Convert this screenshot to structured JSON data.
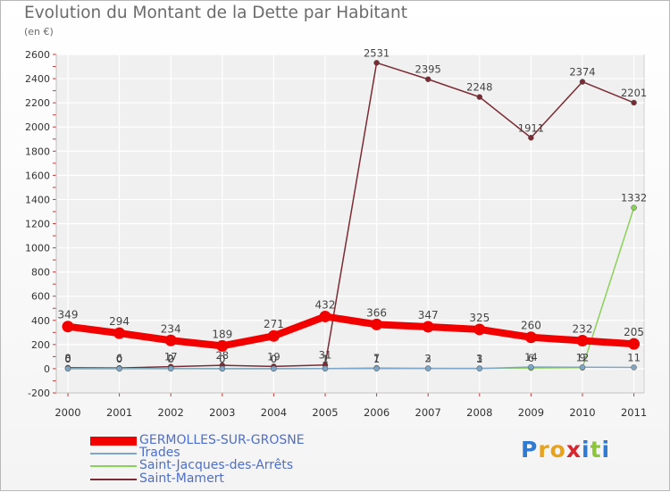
{
  "header": {
    "title": "Evolution du Montant de la Dette par Habitant",
    "unit": "(en €)"
  },
  "chart_data": {
    "type": "line",
    "title": "Evolution du Montant de la Dette par Habitant",
    "ylabel": "(en €)",
    "xlabel": "",
    "x": [
      "2000",
      "2001",
      "2002",
      "2003",
      "2004",
      "2005",
      "2006",
      "2007",
      "2008",
      "2009",
      "2010",
      "2011"
    ],
    "ylim": [
      -200,
      2600
    ],
    "yticks": [
      -200,
      0,
      200,
      400,
      600,
      800,
      1000,
      1200,
      1400,
      1600,
      1800,
      2000,
      2200,
      2400,
      2600
    ],
    "grid": true,
    "legend_position": "bottom-left",
    "series": [
      {
        "name": "Saint-Mamert",
        "color": "#7b2b33",
        "values": [
          8,
          6,
          17,
          28,
          19,
          31,
          2531,
          2395,
          2248,
          1911,
          2374,
          2201
        ],
        "labels": [
          "8",
          "6",
          "17",
          "28",
          "19",
          "31",
          "2531",
          "2395",
          "2248",
          "1911",
          "2374",
          "2201"
        ]
      },
      {
        "name": "Saint-Jacques-des-Arrêts",
        "color": "#8ad15a",
        "values": [
          0,
          0,
          2,
          0,
          0,
          1,
          7,
          3,
          3,
          6,
          9,
          1332
        ],
        "labels": [
          "0",
          "0",
          "2",
          "0",
          "0",
          "1",
          "7",
          "3",
          "3",
          "6",
          "9",
          "1332"
        ]
      },
      {
        "name": "Trades",
        "color": "#7ea6c7",
        "values": [
          0,
          0,
          0,
          0,
          0,
          1,
          1,
          2,
          1,
          14,
          12,
          11
        ],
        "labels": [
          "0",
          "0",
          "0",
          "0",
          "0",
          "1",
          "1",
          "2",
          "1",
          "14",
          "12",
          "11"
        ]
      },
      {
        "name": "GERMOLLES-SUR-GROSNE",
        "color": "#f20000",
        "values": [
          349,
          294,
          234,
          189,
          271,
          432,
          366,
          347,
          325,
          260,
          232,
          205
        ],
        "labels": [
          "349",
          "294",
          "234",
          "189",
          "271",
          "432",
          "366",
          "347",
          "325",
          "260",
          "232",
          "205"
        ]
      }
    ]
  },
  "legend": {
    "items": [
      {
        "label": "GERMOLLES-SUR-GROSNE",
        "color": "#f20000"
      },
      {
        "label": "Trades",
        "color": "#7ea6c7"
      },
      {
        "label": "Saint-Jacques-des-Arrêts",
        "color": "#8ad15a"
      },
      {
        "label": "Saint-Mamert",
        "color": "#7b2b33"
      }
    ]
  },
  "brand": {
    "letters": [
      "P",
      "r",
      "o",
      "x",
      "i",
      "t",
      "i"
    ],
    "colors": [
      "#2f7bd1",
      "#e8a31b",
      "#e8a31b",
      "#d7262f",
      "#2f7bd1",
      "#8cc43a",
      "#2f7bd1"
    ]
  }
}
